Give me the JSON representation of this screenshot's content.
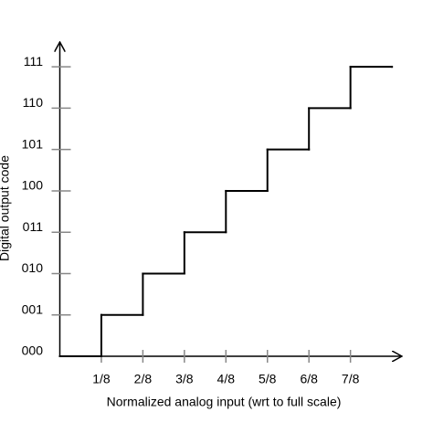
{
  "chart_data": {
    "type": "step",
    "x_label": "Normalized analog input (wrt to full scale)",
    "y_label": "Digital output code",
    "x": [
      0,
      0.125,
      0.25,
      0.375,
      0.5,
      0.625,
      0.75,
      0.875,
      1
    ],
    "values": [
      0,
      1,
      2,
      3,
      4,
      5,
      6,
      7,
      7
    ],
    "color": "#000000",
    "xlim": [
      0,
      1.03
    ],
    "ylim": [
      0,
      7.6
    ],
    "xticks": [
      {
        "value": 0.125,
        "label": "1/8"
      },
      {
        "value": 0.25,
        "label": "2/8"
      },
      {
        "value": 0.375,
        "label": "3/8"
      },
      {
        "value": 0.5,
        "label": "4/8"
      },
      {
        "value": 0.625,
        "label": "5/8"
      },
      {
        "value": 0.75,
        "label": "6/8"
      },
      {
        "value": 0.875,
        "label": "7/8"
      }
    ],
    "yticks": [
      {
        "value": 0,
        "label": "000"
      },
      {
        "value": 1,
        "label": "001"
      },
      {
        "value": 2,
        "label": "010"
      },
      {
        "value": 3,
        "label": "011"
      },
      {
        "value": 4,
        "label": "100"
      },
      {
        "value": 5,
        "label": "101"
      },
      {
        "value": 6,
        "label": "110"
      },
      {
        "value": 7,
        "label": "111"
      }
    ]
  }
}
